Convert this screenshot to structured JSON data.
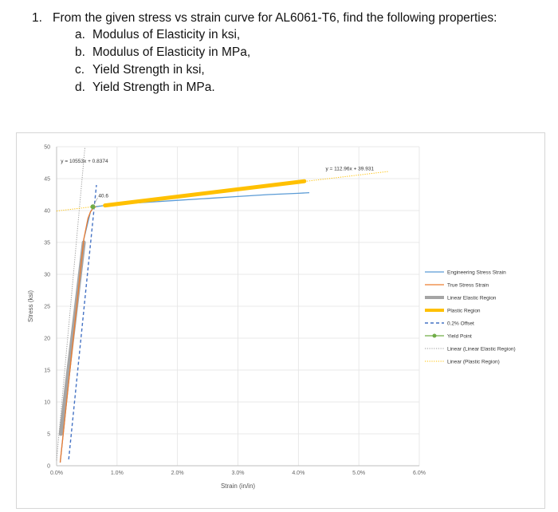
{
  "question": {
    "number": "1.",
    "text": "From the given stress vs strain curve for AL6061-T6, find the following properties:",
    "items": [
      {
        "letter": "a.",
        "text": "Modulus of Elasticity in ksi,"
      },
      {
        "letter": "b.",
        "text": "Modulus of Elasticity in MPa,"
      },
      {
        "letter": "c.",
        "text": "Yield Strength in ksi,"
      },
      {
        "letter": "d.",
        "text": "Yield Strength in MPa."
      }
    ]
  },
  "chart_data": {
    "type": "line",
    "title": "",
    "xlabel": "Strain (in/in)",
    "ylabel": "Stress (ksi)",
    "xlim": [
      0,
      0.06
    ],
    "ylim": [
      0,
      50
    ],
    "x_ticks": [
      0,
      0.01,
      0.02,
      0.03,
      0.04,
      0.05,
      0.06
    ],
    "x_tick_labels": [
      "0.0%",
      "1.0%",
      "2.0%",
      "3.0%",
      "4.0%",
      "5.0%",
      "6.0%"
    ],
    "y_ticks": [
      0,
      5,
      10,
      15,
      20,
      25,
      30,
      35,
      40,
      45,
      50
    ],
    "y_tick_labels": [
      "0",
      "5",
      "10",
      "15",
      "20",
      "25",
      "30",
      "35",
      "40",
      "45",
      "50"
    ],
    "grid": true,
    "legend_position": "right",
    "annotations": [
      {
        "text": "y = 10553x + 0.8374",
        "x": 0.0007,
        "y": 47.5
      },
      {
        "text": "y = 112.96x + 39.931",
        "x": 0.0445,
        "y": 46.3
      },
      {
        "text": "40.6",
        "x": 0.0055,
        "y": 42.3
      }
    ],
    "series": [
      {
        "name": "Engineering Stress Strain",
        "color": "#5b9bd5",
        "style": "solid",
        "x": [
          0.0006,
          0.0045,
          0.0056,
          0.006,
          0.0065,
          0.008,
          0.01,
          0.015,
          0.02,
          0.025,
          0.03,
          0.035,
          0.04,
          0.0418
        ],
        "y": [
          0.5,
          35.5,
          39.8,
          40.4,
          40.6,
          40.8,
          41.0,
          41.3,
          41.6,
          41.9,
          42.2,
          42.5,
          42.7,
          42.8
        ]
      },
      {
        "name": "True Stress Strain",
        "color": "#ed7d31",
        "style": "solid",
        "x": [
          0.0006,
          0.0045,
          0.0052,
          0.0056,
          0.006,
          0.0065
        ],
        "y": [
          0.5,
          35.5,
          38.8,
          39.8,
          40.3,
          40.6
        ]
      },
      {
        "name": "Linear Elastic Region",
        "color": "#a5a5a5",
        "style": "thick",
        "x": [
          0.0007,
          0.0045
        ],
        "y": [
          5.0,
          35.0
        ]
      },
      {
        "name": "Plastic Region",
        "color": "#ffc000",
        "style": "thick",
        "x": [
          0.008,
          0.041
        ],
        "y": [
          40.8,
          44.6
        ]
      },
      {
        "name": "0.2% Offset",
        "color": "#4472c4",
        "style": "dashed",
        "x": [
          0.002,
          0.0066
        ],
        "y": [
          1.0,
          44.0
        ]
      },
      {
        "name": "Yield Point",
        "color": "#70ad47",
        "style": "marker",
        "x": [
          0.006
        ],
        "y": [
          40.6
        ]
      },
      {
        "name": "Linear (Linear Elastic Region)",
        "color": "#999999",
        "style": "dotted",
        "x": [
          0.0,
          0.0047
        ],
        "y": [
          0.84,
          50.0
        ]
      },
      {
        "name": "Linear (Plastic Region)",
        "color": "#ffc000",
        "style": "dotted",
        "x": [
          0.0,
          0.055
        ],
        "y": [
          39.93,
          46.14
        ]
      }
    ]
  }
}
